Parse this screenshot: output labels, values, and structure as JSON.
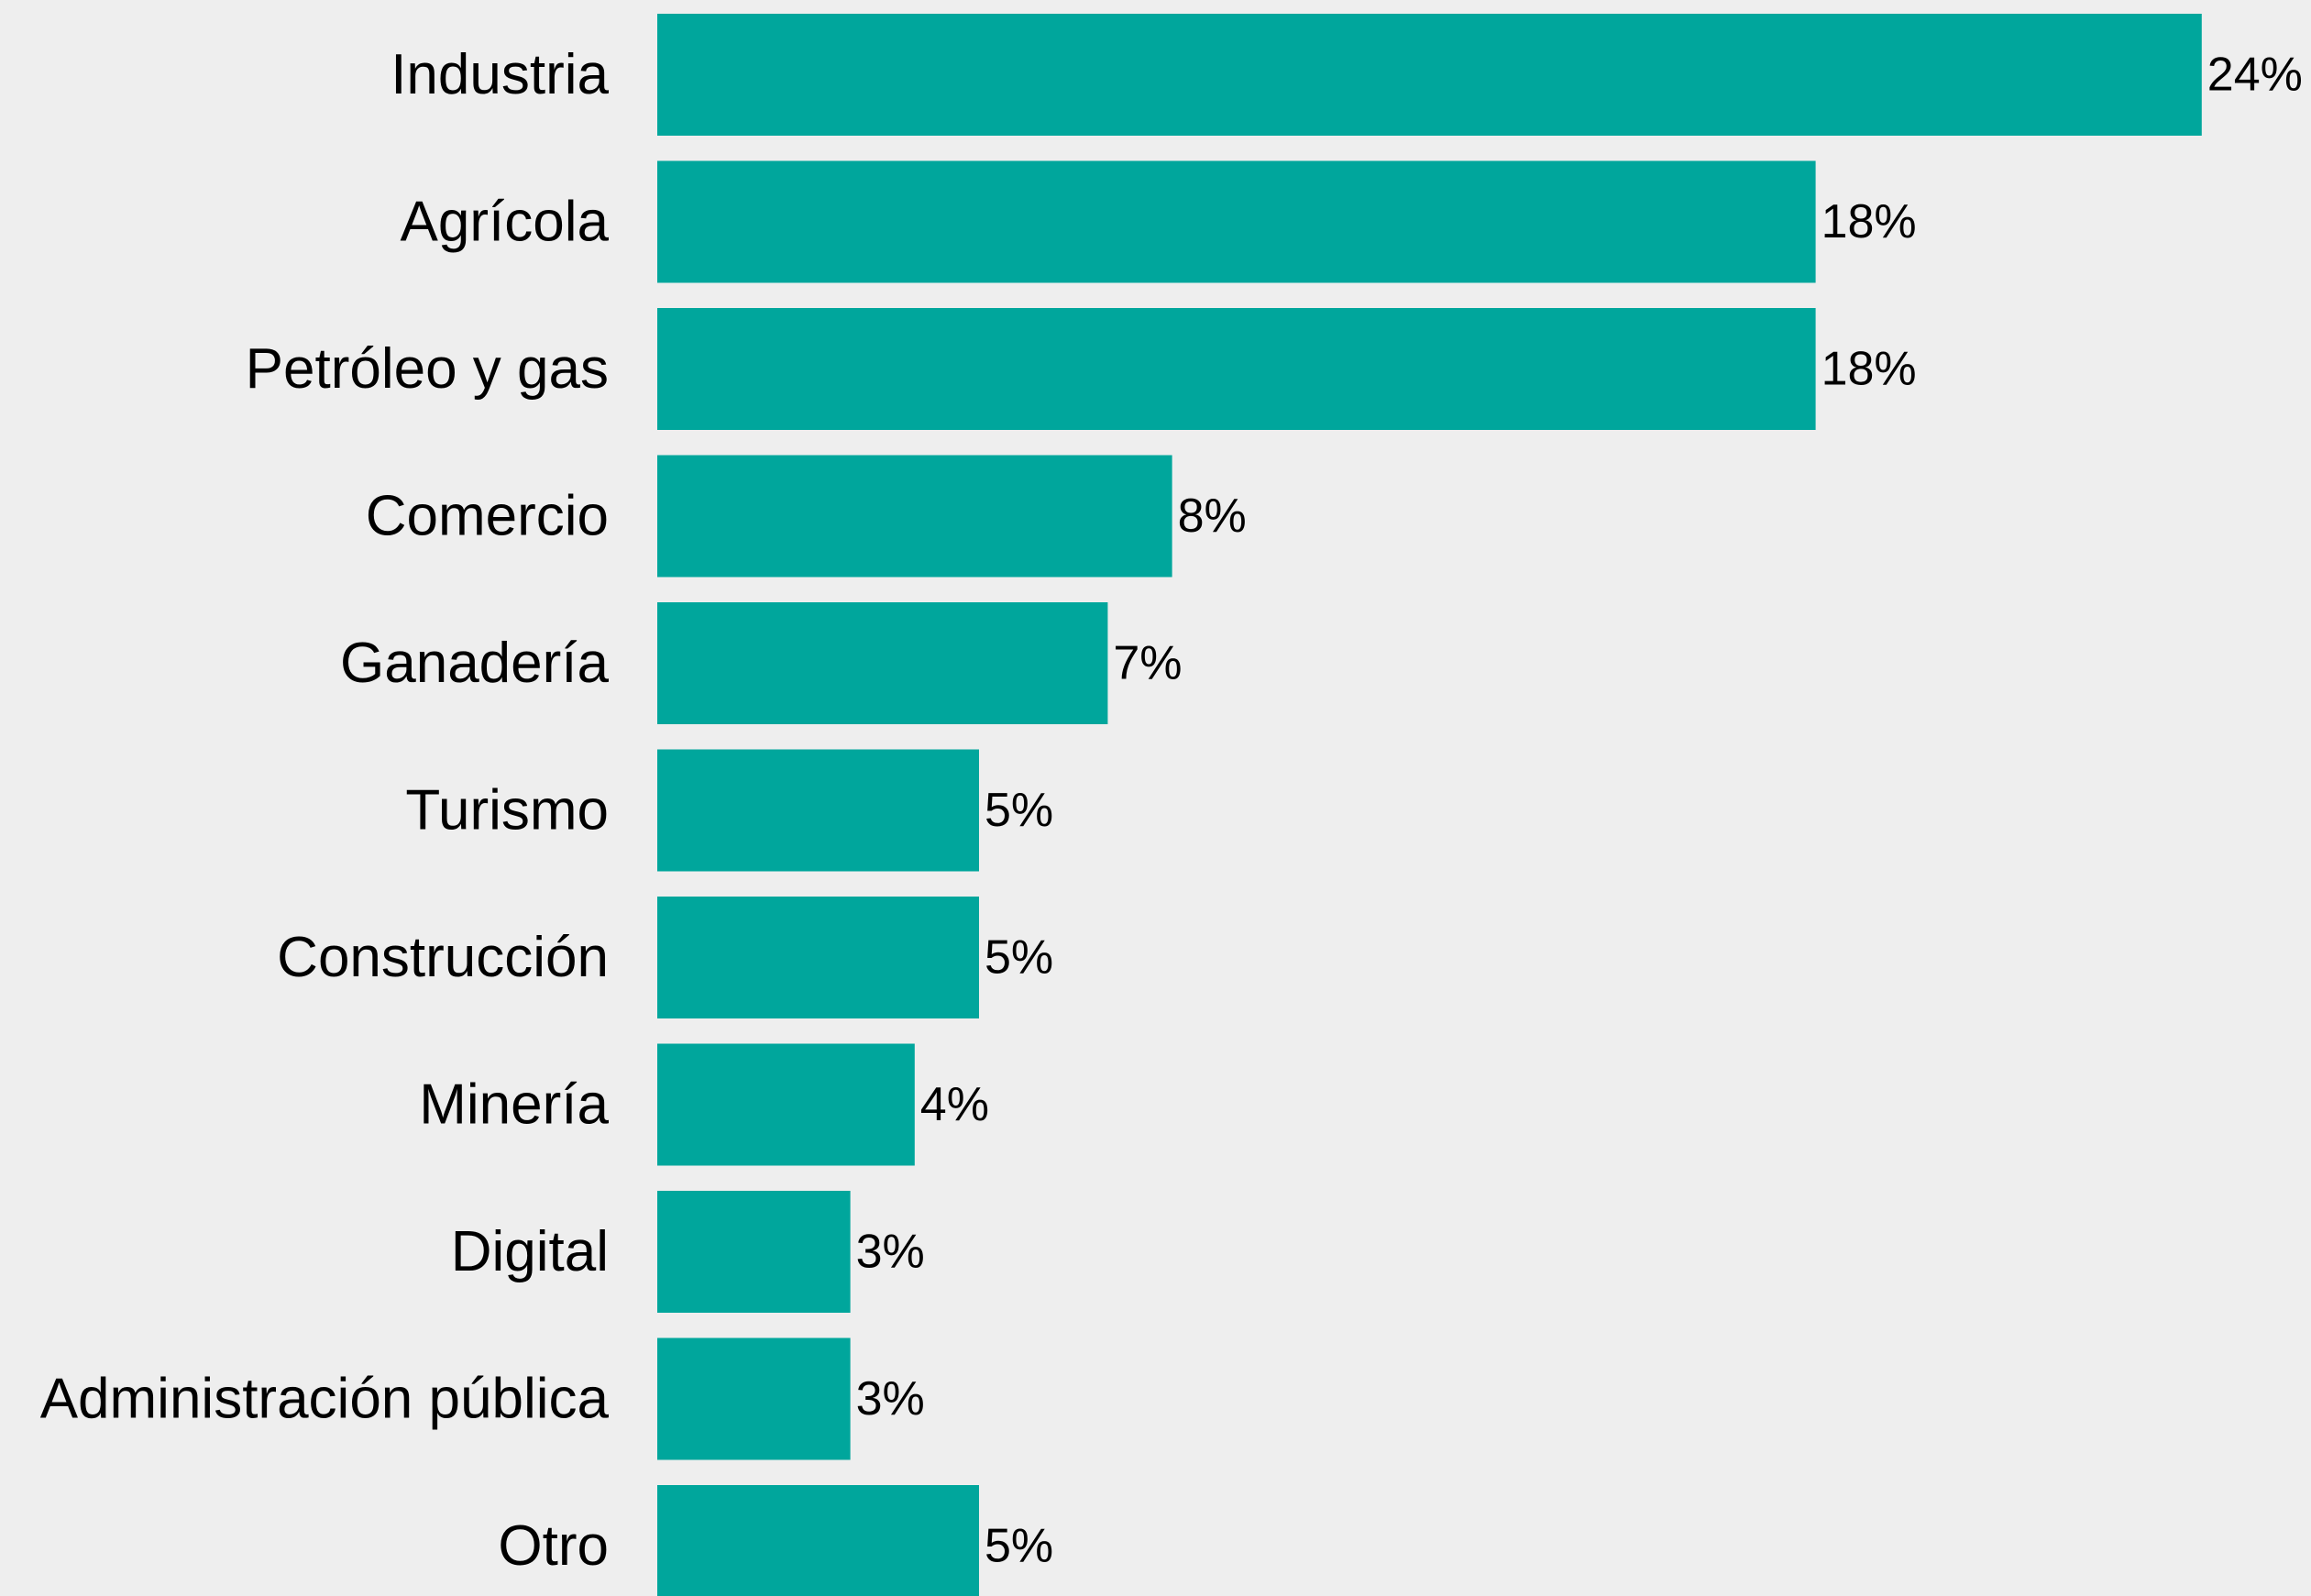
{
  "chart_data": {
    "type": "bar",
    "orientation": "horizontal",
    "categories": [
      "Industria",
      "Agrícola",
      "Petróleo y gas",
      "Comercio",
      "Ganadería",
      "Turismo",
      "Construcción",
      "Minería",
      "Digital",
      "Administración pública",
      "Otro"
    ],
    "values": [
      24,
      18,
      18,
      8,
      7,
      5,
      5,
      4,
      3,
      3,
      5
    ],
    "value_labels": [
      "24%",
      "18%",
      "18%",
      "8%",
      "7%",
      "5%",
      "5%",
      "4%",
      "3%",
      "3%",
      "5%"
    ],
    "unit": "%",
    "bar_color": "#00a69c",
    "background": "#eeeeee",
    "title": "",
    "xlabel": "",
    "ylabel": "",
    "xlim": [
      0,
      24
    ],
    "grid": false,
    "legend": "none"
  }
}
